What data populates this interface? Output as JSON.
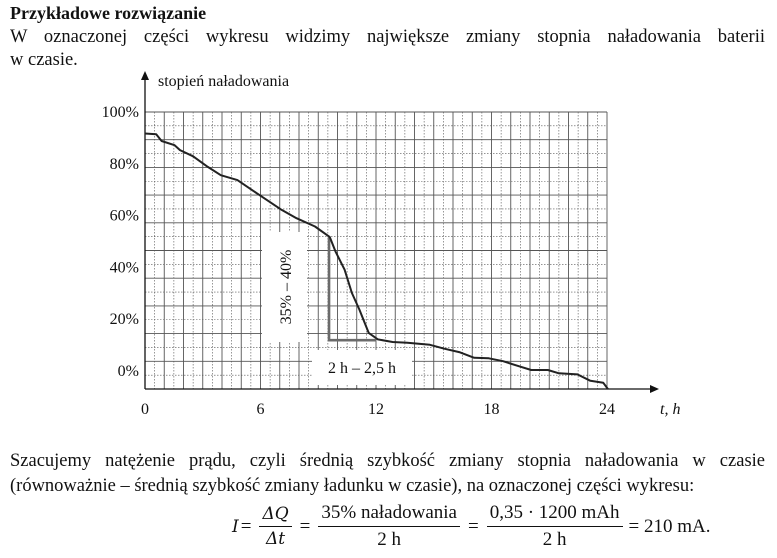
{
  "title": "Przykładowe rozwiązanie",
  "intro": {
    "line1": "W oznaczonej części wykresu widzimy największe zmiany stopnia naładowania baterii",
    "line2": "w czasie."
  },
  "explanation": {
    "line1": "Szacujemy natężenie prądu, czyli średnią szybkość zmiany stopnia naładowania w czasie",
    "line2": "(równoważnie – średnią szybkość zmiany ładunku w czasie), na oznaczonej części wykresu:"
  },
  "formula": {
    "lhs": "I",
    "eq": "=",
    "frac1_num": "ΔQ",
    "frac1_den": "Δt",
    "frac2_num": "35% naładowania",
    "frac2_den": "2 h",
    "frac3_num": "0,35 · 1200 mAh",
    "frac3_den": "2 h",
    "result": "= 210 mA."
  },
  "chart_data": {
    "type": "line",
    "ylabel": "stopień naładowania",
    "xlabel": "t, h",
    "xlim": [
      0,
      24
    ],
    "ylim": [
      -7,
      100
    ],
    "x_ticks": [
      "0",
      "6",
      "12",
      "18",
      "24"
    ],
    "x_tick_values": [
      0,
      6,
      12,
      18,
      24
    ],
    "y_ticks": [
      "100%",
      "80%",
      "60%",
      "40%",
      "20%",
      "0%"
    ],
    "y_tick_values": [
      100,
      80,
      60,
      40,
      20,
      0
    ],
    "grid": true,
    "series": [
      {
        "name": "stopień naładowania",
        "x": [
          0,
          0.58,
          0.86,
          1.54,
          1.82,
          2.5,
          3.26,
          3.94,
          4.8,
          5.95,
          7.1,
          7.87,
          8.83,
          9.6,
          9.89,
          10.37,
          10.75,
          11.14,
          11.62,
          12.1,
          12.86,
          13.63,
          14.8,
          15.55,
          16.32,
          17.1,
          17.86,
          18.6,
          19.4,
          20.06,
          20.93,
          21.5,
          22.46,
          23.14,
          23.8,
          24.05
        ],
        "y": [
          91.7,
          91.4,
          88.8,
          87.2,
          85.3,
          82.9,
          78.8,
          75.6,
          73.7,
          67.9,
          62.2,
          59,
          55.8,
          51.7,
          46.2,
          39.1,
          30.1,
          23.7,
          14.7,
          12.2,
          11.2,
          10.9,
          10.1,
          8.6,
          7.3,
          5.1,
          4.9,
          3.8,
          1.9,
          0.4,
          0.4,
          -0.9,
          -1.3,
          -3.8,
          -4.5,
          -7
        ]
      }
    ],
    "annotations": {
      "marker_x": [
        9.56,
        12
      ],
      "marker_y": [
        51.7,
        11.9
      ],
      "vertical_label": "35% – 40%",
      "horizontal_label": "2 h – 2,5 h"
    },
    "colors": {
      "curve": "#222222",
      "marker": "#6b6b6b",
      "grid": "#555555"
    }
  }
}
